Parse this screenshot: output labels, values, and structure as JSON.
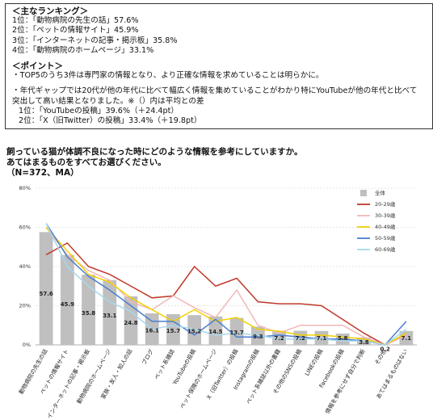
{
  "summary": {
    "ranking_title": "＜主なランキング＞",
    "ranking": [
      "1位：「動物病院の先生の話」57.6%",
      "2位：「ペットの情報サイト」45.9%",
      "3位：「インターネットの記事・掲示板」35.8%",
      "4位：「動物病院のホームページ」33.1%"
    ],
    "point_title": "＜ポイント＞",
    "points": [
      "・TOP5のうち3件は専門家の情報となり、より正確な情報を求めていることは明らかに。",
      "・年代ギャップでは20代が他の年代に比べて幅広く情報を集めていることがわかり特にYouTubeが他の年代と比べて",
      "突出して高い結果となりました。※（）内は平均との差"
    ],
    "gap": [
      "1位：「YouTubeの投稿」39.6%（＋24.4pt）",
      "2位：「X（旧Twitter）の投稿」33.4%（＋19.8pt）"
    ]
  },
  "chart_data": {
    "type": "bar",
    "title": "飼っている猫が体調不良になった時にどのような情報を参考にしていますか。",
    "subtitle": "あてはまるものをすべてお選びください。",
    "note": "（N=372、MA）",
    "categories": [
      "動物病院の先生の話",
      "ペットの情報サイト",
      "インターネットの記事・掲示板",
      "動物病院のホームページ",
      "家族・友人・知人の話",
      "ブログ",
      "ペット系雑誌",
      "YouTubeの投稿",
      "ペット保険のホームページ",
      "X（旧Twitter）の投稿",
      "Instagramの投稿",
      "ペット系雑誌以外の書籍",
      "その他のSNSの投稿",
      "LINEの投稿",
      "Facebookの投稿",
      "情報を参考にせず自分で判断",
      "その他",
      "あてはまるものはない"
    ],
    "series": [
      {
        "name": "全体",
        "color": "#bfbfbf",
        "kind": "bar",
        "values": [
          57.6,
          45.9,
          35.8,
          33.1,
          24.8,
          16.1,
          15.7,
          15.2,
          14.5,
          13.7,
          9.3,
          7.2,
          7.2,
          7.1,
          5.8,
          3.8,
          0.2,
          7.1
        ]
      },
      {
        "name": "20-29歳",
        "color": "#c0392b",
        "kind": "line",
        "values": [
          46,
          52,
          40,
          36,
          30,
          24,
          25,
          40,
          30,
          34,
          22,
          21,
          21,
          20,
          13,
          6,
          0,
          5
        ]
      },
      {
        "name": "30-39歳",
        "color": "#f2b8b8",
        "kind": "line",
        "values": [
          60,
          46,
          38,
          33,
          22,
          18,
          25,
          19,
          14,
          28,
          10,
          6,
          10,
          10,
          10,
          4,
          0,
          5
        ]
      },
      {
        "name": "40-49歳",
        "color": "#f2d000",
        "kind": "line",
        "values": [
          60,
          48,
          36,
          32,
          24,
          18,
          12,
          18,
          12,
          14,
          8,
          7,
          5,
          5,
          4,
          3,
          0,
          6
        ]
      },
      {
        "name": "50-59歳",
        "color": "#4a7fd0",
        "kind": "line",
        "values": [
          62,
          45,
          35,
          28,
          20,
          12,
          12,
          5,
          13,
          4,
          4,
          5,
          4,
          3,
          3,
          2,
          0,
          12
        ]
      },
      {
        "name": "60-69歳",
        "color": "#a8d8ec",
        "kind": "line",
        "values": [
          62,
          40,
          30,
          22,
          17,
          8,
          10,
          8,
          5,
          6,
          5,
          3,
          3,
          3,
          2,
          2,
          0,
          8
        ]
      }
    ],
    "ylim": [
      0,
      80
    ],
    "yticks": [
      {
        "value": 0,
        "label": "0%"
      },
      {
        "value": 20,
        "label": "20%"
      },
      {
        "value": 40,
        "label": "40%"
      },
      {
        "value": 60,
        "label": "60%"
      },
      {
        "value": 80,
        "label": "80%"
      }
    ],
    "grid": true,
    "legend": "top-right"
  }
}
